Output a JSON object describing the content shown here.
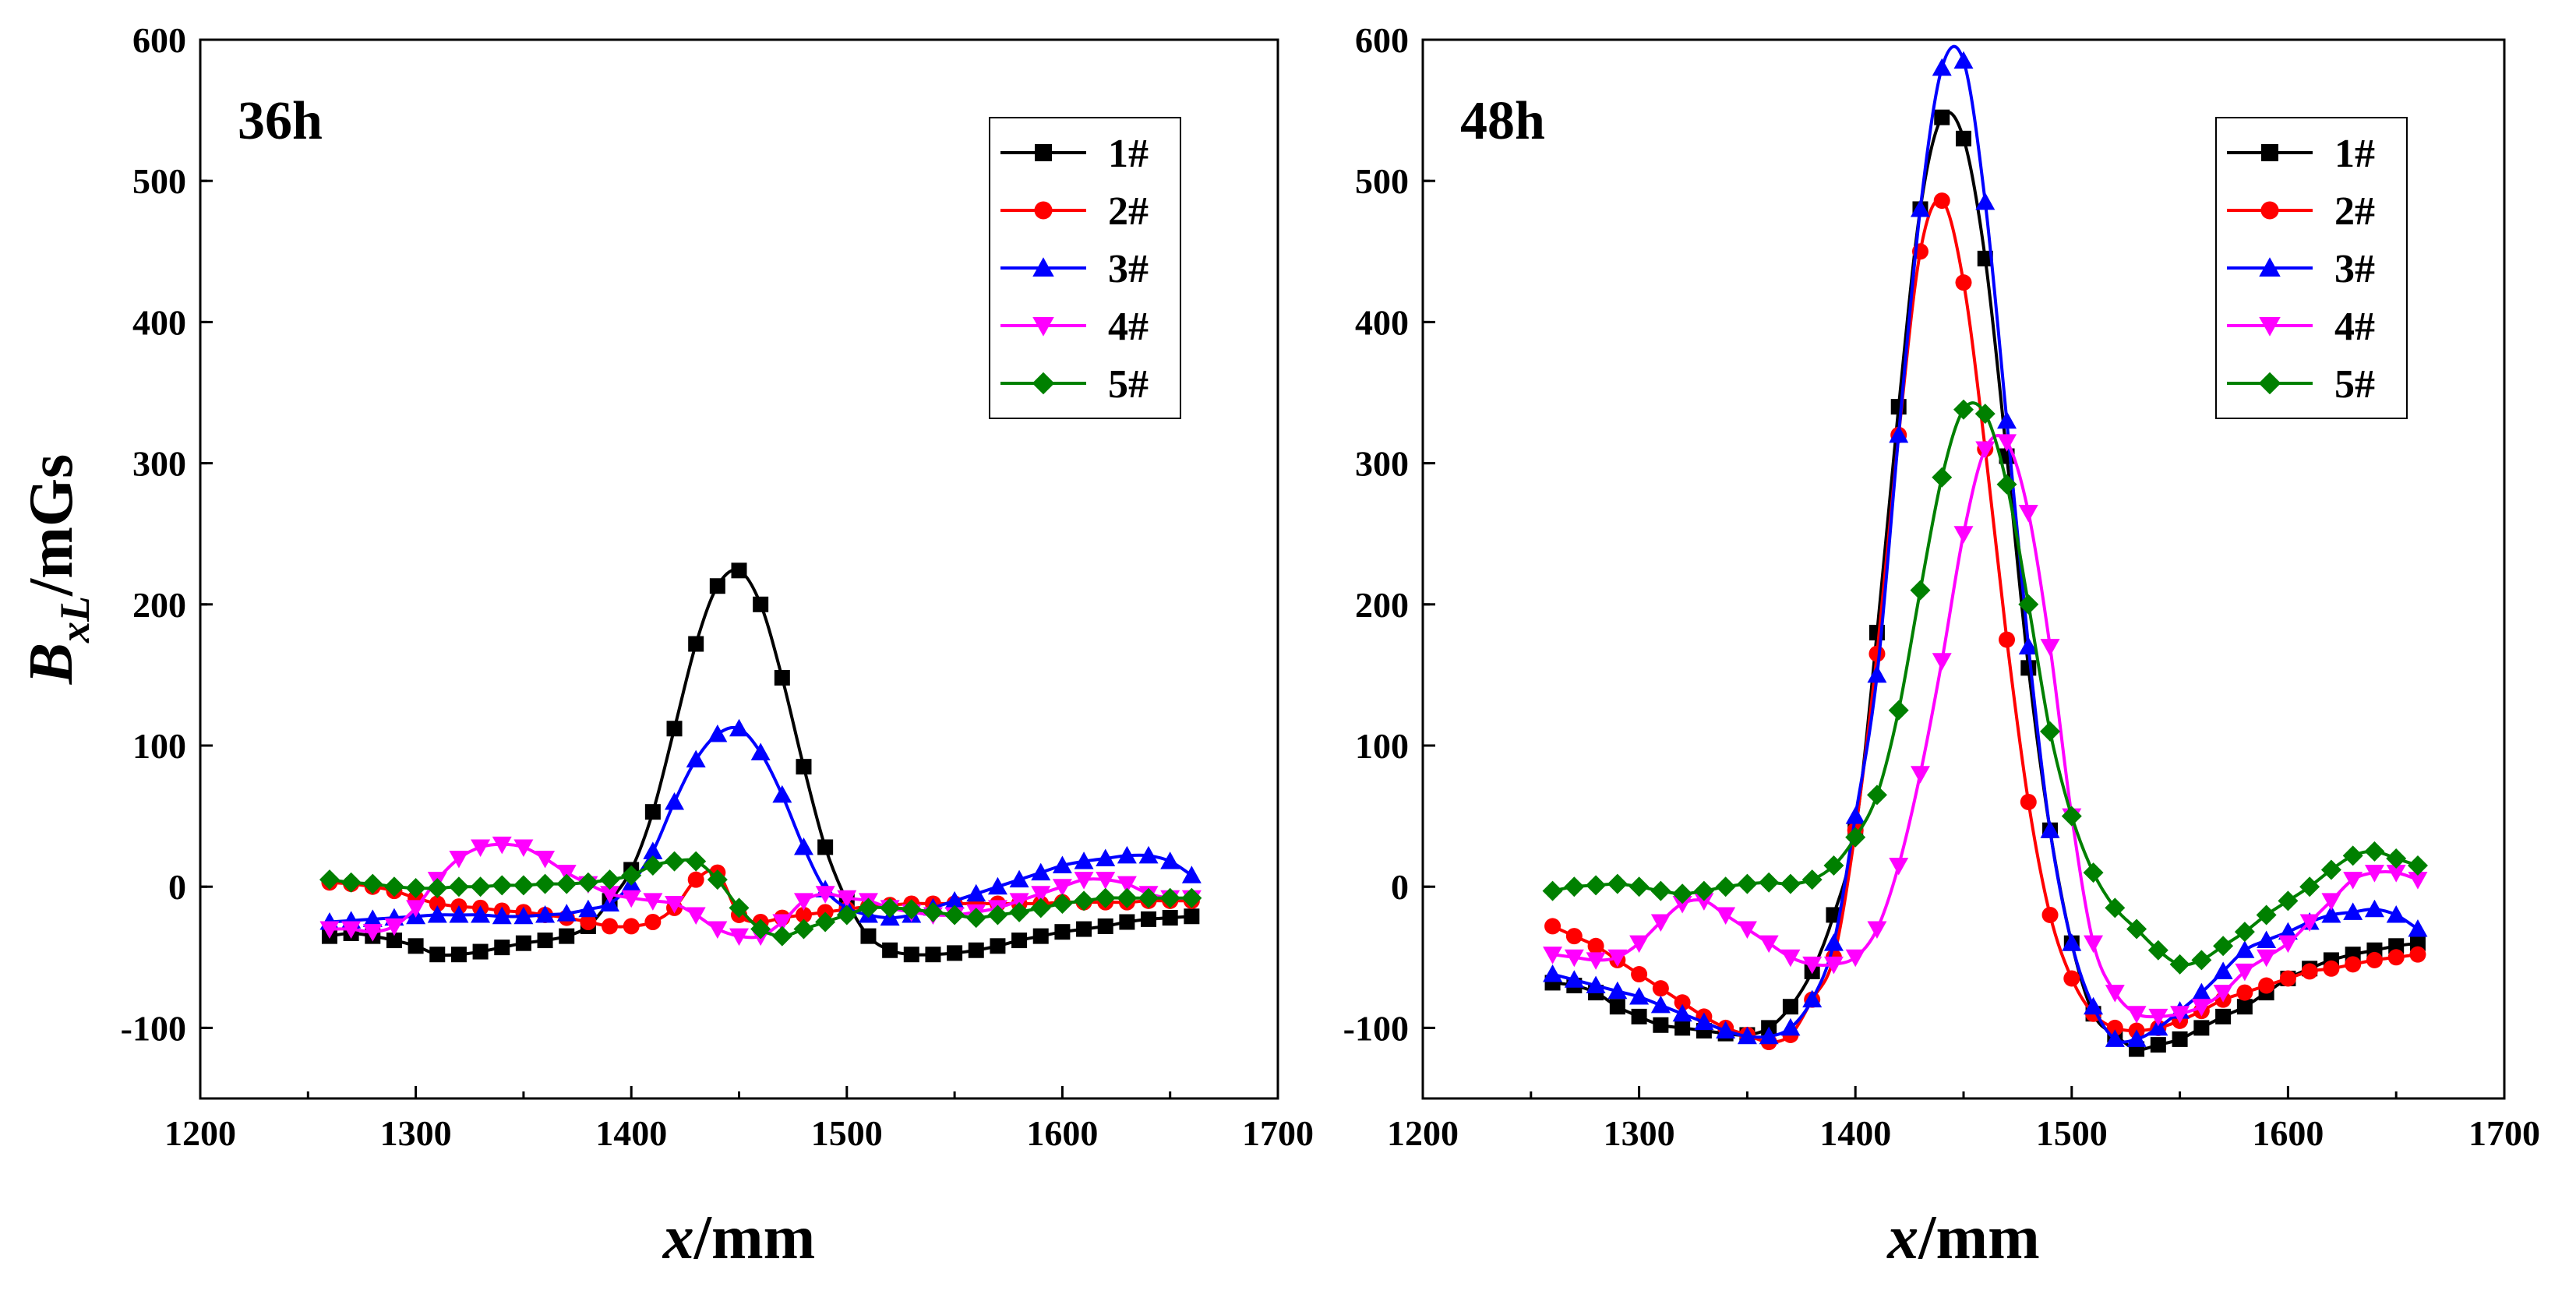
{
  "chart_data": [
    {
      "type": "line",
      "panel_label": "36h",
      "xlabel": {
        "italic": "x",
        "rest": "/mm"
      },
      "ylabel": {
        "main": "B",
        "sub": "xL",
        "rest": "/mGs"
      },
      "xlim": [
        1200,
        1700
      ],
      "ylim": [
        -150,
        600
      ],
      "xticks": [
        1200,
        1300,
        1400,
        1500,
        1600,
        1700
      ],
      "yticks": [
        -100,
        0,
        100,
        200,
        300,
        400,
        500,
        600
      ],
      "tick_labels_x": [
        "1200",
        "1300",
        "1400",
        "1500",
        "1600",
        "1700"
      ],
      "tick_labels_y": [
        "-100",
        "0",
        "100",
        "200",
        "300",
        "400",
        "500",
        "600"
      ],
      "legend_position": "top-right",
      "x_start": 1260,
      "x_step": 10,
      "series": [
        {
          "name": "1#",
          "color": "#000000",
          "marker": "square",
          "values": [
            -35,
            -33,
            -35,
            -38,
            -42,
            -48,
            -48,
            -46,
            -43,
            -40,
            -38,
            -35,
            -28,
            -10,
            12,
            53,
            112,
            172,
            213,
            224,
            200,
            148,
            85,
            28,
            -10,
            -35,
            -45,
            -48,
            -48,
            -47,
            -45,
            -42,
            -38,
            -35,
            -32,
            -30,
            -28,
            -25,
            -23,
            -22,
            -21
          ]
        },
        {
          "name": "2#",
          "color": "#ff0000",
          "marker": "circle",
          "values": [
            3,
            2,
            0,
            -3,
            -8,
            -12,
            -14,
            -15,
            -17,
            -18,
            -20,
            -22,
            -25,
            -28,
            -28,
            -25,
            -15,
            5,
            10,
            -20,
            -25,
            -22,
            -20,
            -18,
            -16,
            -14,
            -13,
            -12,
            -12,
            -12,
            -12,
            -12,
            -12,
            -12,
            -11,
            -11,
            -11,
            -11,
            -10,
            -10,
            -10
          ]
        },
        {
          "name": "3#",
          "color": "#0000ff",
          "marker": "triangle-up",
          "values": [
            -25,
            -24,
            -23,
            -22,
            -21,
            -20,
            -20,
            -20,
            -21,
            -21,
            -20,
            -19,
            -16,
            -12,
            2,
            25,
            60,
            90,
            108,
            112,
            95,
            65,
            28,
            -2,
            -15,
            -20,
            -22,
            -20,
            -15,
            -10,
            -5,
            0,
            5,
            10,
            15,
            18,
            20,
            22,
            22,
            18,
            8
          ]
        },
        {
          "name": "4#",
          "color": "#ff00ff",
          "marker": "triangle-down",
          "values": [
            -30,
            -30,
            -32,
            -28,
            -15,
            5,
            20,
            28,
            30,
            28,
            20,
            10,
            2,
            -5,
            -8,
            -10,
            -12,
            -20,
            -30,
            -35,
            -35,
            -25,
            -10,
            -5,
            -8,
            -10,
            -15,
            -18,
            -20,
            -20,
            -18,
            -15,
            -10,
            -5,
            0,
            5,
            5,
            2,
            -5,
            -8,
            -8
          ]
        },
        {
          "name": "5#",
          "color": "#008000",
          "marker": "diamond",
          "values": [
            5,
            3,
            2,
            0,
            -1,
            -1,
            0,
            0,
            1,
            1,
            2,
            2,
            3,
            5,
            8,
            15,
            18,
            18,
            5,
            -15,
            -30,
            -35,
            -30,
            -25,
            -20,
            -15,
            -15,
            -16,
            -18,
            -20,
            -22,
            -20,
            -18,
            -15,
            -12,
            -10,
            -8,
            -8,
            -8,
            -8,
            -8
          ]
        }
      ]
    },
    {
      "type": "line",
      "panel_label": "48h",
      "xlabel": {
        "italic": "x",
        "rest": "/mm"
      },
      "xlim": [
        1200,
        1700
      ],
      "ylim": [
        -150,
        600
      ],
      "xticks": [
        1200,
        1300,
        1400,
        1500,
        1600,
        1700
      ],
      "yticks": [
        -100,
        0,
        100,
        200,
        300,
        400,
        500,
        600
      ],
      "tick_labels_x": [
        "1200",
        "1300",
        "1400",
        "1500",
        "1600",
        "1700"
      ],
      "tick_labels_y": [
        "-100",
        "0",
        "100",
        "200",
        "300",
        "400",
        "500",
        "600"
      ],
      "legend_position": "top-right",
      "x_start": 1260,
      "x_step": 10,
      "series": [
        {
          "name": "1#",
          "color": "#000000",
          "marker": "square",
          "values": [
            -68,
            -70,
            -75,
            -85,
            -92,
            -98,
            -100,
            -102,
            -104,
            -105,
            -100,
            -85,
            -60,
            -20,
            40,
            180,
            340,
            480,
            545,
            530,
            445,
            305,
            155,
            40,
            -40,
            -90,
            -105,
            -115,
            -112,
            -108,
            -100,
            -92,
            -85,
            -75,
            -65,
            -58,
            -52,
            -48,
            -45,
            -42,
            -40
          ]
        },
        {
          "name": "2#",
          "color": "#ff0000",
          "marker": "circle",
          "values": [
            -28,
            -35,
            -42,
            -52,
            -62,
            -72,
            -82,
            -92,
            -100,
            -105,
            -110,
            -105,
            -80,
            -50,
            40,
            165,
            320,
            450,
            486,
            428,
            310,
            175,
            60,
            -20,
            -65,
            -90,
            -100,
            -102,
            -100,
            -95,
            -88,
            -80,
            -75,
            -70,
            -65,
            -60,
            -58,
            -55,
            -52,
            -50,
            -48
          ]
        },
        {
          "name": "3#",
          "color": "#0000ff",
          "marker": "triangle-up",
          "values": [
            -62,
            -66,
            -70,
            -74,
            -78,
            -84,
            -90,
            -96,
            -102,
            -106,
            -106,
            -100,
            -80,
            -40,
            50,
            150,
            320,
            480,
            580,
            585,
            485,
            330,
            170,
            40,
            -40,
            -85,
            -108,
            -108,
            -100,
            -88,
            -75,
            -60,
            -45,
            -38,
            -32,
            -25,
            -20,
            -18,
            -16,
            -20,
            -30
          ]
        },
        {
          "name": "4#",
          "color": "#ff00ff",
          "marker": "triangle-down",
          "values": [
            -48,
            -50,
            -52,
            -50,
            -40,
            -25,
            -12,
            -10,
            -20,
            -30,
            -40,
            -50,
            -55,
            -55,
            -50,
            -30,
            15,
            80,
            160,
            250,
            310,
            315,
            265,
            170,
            50,
            -40,
            -75,
            -90,
            -92,
            -90,
            -85,
            -75,
            -60,
            -50,
            -40,
            -25,
            -10,
            5,
            10,
            10,
            5
          ]
        },
        {
          "name": "5#",
          "color": "#008000",
          "marker": "diamond",
          "values": [
            -3,
            0,
            1,
            2,
            0,
            -3,
            -5,
            -3,
            0,
            2,
            3,
            2,
            5,
            15,
            35,
            65,
            125,
            210,
            290,
            338,
            335,
            285,
            200,
            110,
            50,
            10,
            -15,
            -30,
            -45,
            -55,
            -52,
            -42,
            -32,
            -20,
            -10,
            0,
            12,
            22,
            25,
            20,
            15
          ]
        }
      ]
    }
  ]
}
